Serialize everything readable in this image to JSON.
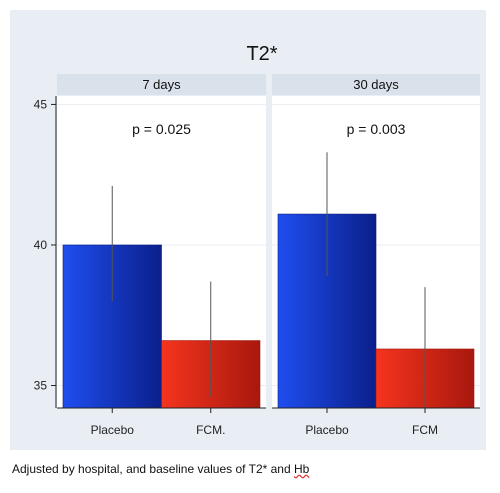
{
  "chart_data": {
    "type": "bar",
    "title": "T2*",
    "ylim": [
      34.2,
      45.3
    ],
    "yticks": [
      35,
      40,
      45
    ],
    "grid": true,
    "colors": {
      "Placebo": "#1a3fd6",
      "FCM": "#e8301e"
    },
    "panels": [
      {
        "label": "7 days",
        "pvalue_label": "p = 0.025",
        "categories": [
          "Placebo",
          "FCM."
        ],
        "values": [
          40.0,
          36.6
        ],
        "ci_low": [
          38.0,
          34.6
        ],
        "ci_high": [
          42.1,
          38.7
        ]
      },
      {
        "label": "30 days",
        "pvalue_label": "p = 0.003",
        "categories": [
          "Placebo",
          "FCM"
        ],
        "values": [
          41.1,
          36.3
        ],
        "ci_low": [
          38.9,
          34.2
        ],
        "ci_high": [
          43.3,
          38.5
        ]
      }
    ]
  },
  "caption": {
    "text": "Adjusted by hospital, and baseline values of T2* and ",
    "hb": "Hb"
  }
}
